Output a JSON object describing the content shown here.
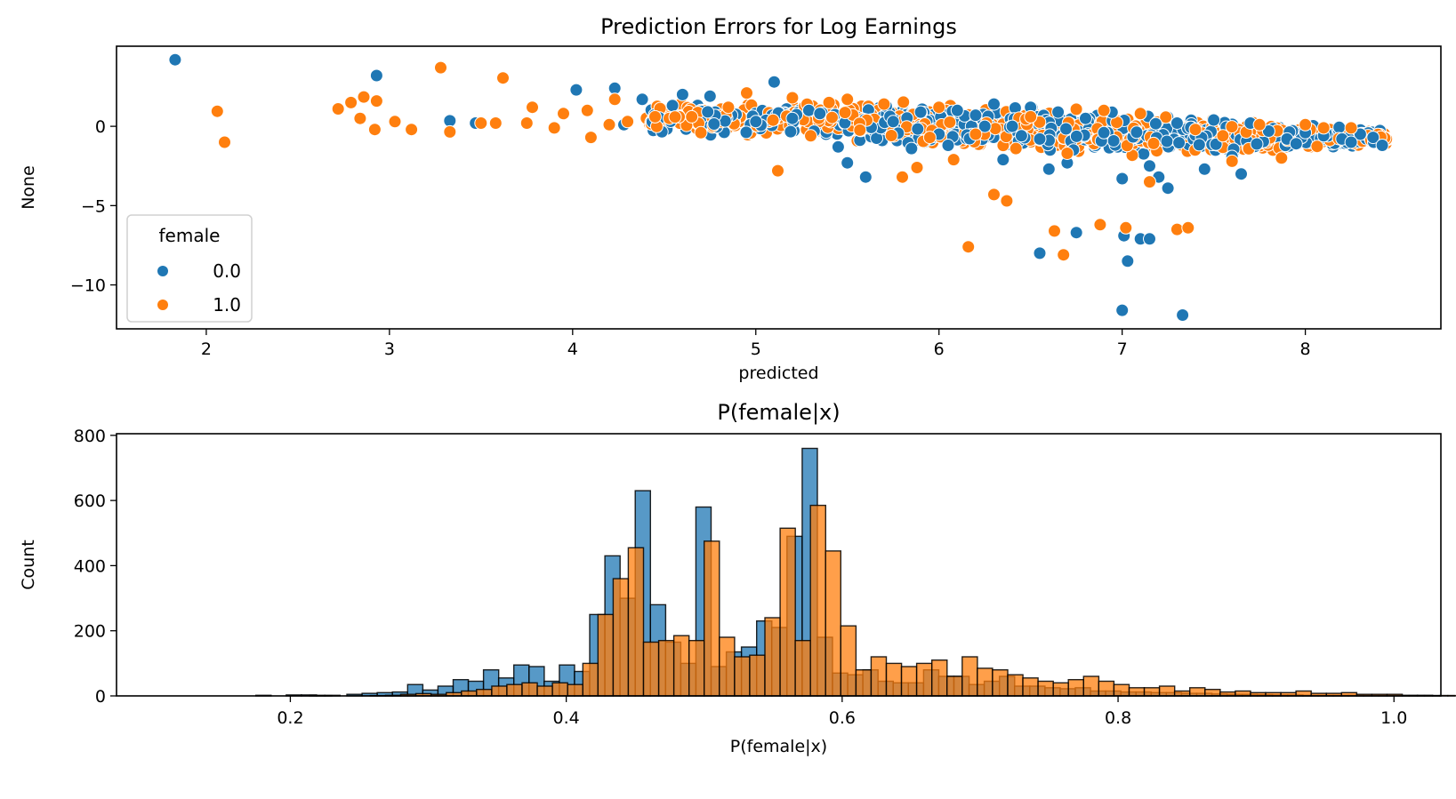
{
  "chart_data": [
    {
      "type": "scatter",
      "title": "Prediction Errors for Log Earnings",
      "xlabel": "predicted",
      "ylabel": "None",
      "xlim": [
        1.51,
        8.74
      ],
      "ylim": [
        -12.77,
        5.05
      ],
      "xticks": [
        2,
        3,
        4,
        5,
        6,
        7,
        8
      ],
      "xtick_labels": [
        "2",
        "3",
        "4",
        "5",
        "6",
        "7",
        "8"
      ],
      "yticks": [
        0,
        -5,
        -10
      ],
      "ytick_labels": [
        "0",
        "−5",
        "−10"
      ],
      "grid": false,
      "legend": {
        "title": "female",
        "placement": "lower-left",
        "entries": [
          {
            "label": "0.0",
            "color": "#1f77b4"
          },
          {
            "label": "1.0",
            "color": "#ff7f0e"
          }
        ]
      },
      "series": [
        {
          "name": "0.0",
          "color": "#1f77b4",
          "points": [
            [
              1.83,
              4.2
            ],
            [
              2.93,
              3.2
            ],
            [
              3.33,
              0.35
            ],
            [
              3.47,
              0.2
            ],
            [
              4.02,
              2.3
            ],
            [
              4.23,
              2.4
            ],
            [
              4.28,
              0.1
            ],
            [
              4.38,
              1.7
            ],
            [
              4.6,
              2.0
            ],
            [
              4.75,
              1.9
            ],
            [
              5.1,
              2.8
            ],
            [
              5.0,
              0.3
            ],
            [
              5.2,
              0.5
            ],
            [
              5.35,
              0.8
            ],
            [
              5.45,
              -1.3
            ],
            [
              5.5,
              -2.3
            ],
            [
              5.6,
              -3.2
            ],
            [
              5.75,
              0.3
            ],
            [
              5.9,
              0.9
            ],
            [
              6.0,
              -0.5
            ],
            [
              6.1,
              1.0
            ],
            [
              6.2,
              0.7
            ],
            [
              6.3,
              1.4
            ],
            [
              6.35,
              -2.1
            ],
            [
              6.4,
              0.0
            ],
            [
              6.5,
              1.2
            ],
            [
              6.55,
              -0.8
            ],
            [
              6.6,
              -2.7
            ],
            [
              6.65,
              0.9
            ],
            [
              6.7,
              -2.3
            ],
            [
              6.75,
              -6.7
            ],
            [
              6.55,
              -8.0
            ],
            [
              6.8,
              0.5
            ],
            [
              6.9,
              -0.4
            ],
            [
              7.0,
              -3.3
            ],
            [
              7.01,
              -6.9
            ],
            [
              7.03,
              -8.5
            ],
            [
              7.1,
              -7.1
            ],
            [
              7.15,
              -7.1
            ],
            [
              7.0,
              -11.6
            ],
            [
              7.33,
              -11.9
            ],
            [
              7.15,
              -2.5
            ],
            [
              7.2,
              -3.2
            ],
            [
              7.25,
              -3.9
            ],
            [
              7.3,
              0.2
            ],
            [
              7.45,
              -2.7
            ],
            [
              7.5,
              0.4
            ],
            [
              7.6,
              -1.9
            ],
            [
              7.65,
              -3.0
            ],
            [
              7.7,
              0.2
            ],
            [
              7.8,
              -0.3
            ],
            [
              7.9,
              -0.8
            ],
            [
              8.0,
              -0.4
            ],
            [
              8.1,
              -0.6
            ],
            [
              8.2,
              -0.8
            ],
            [
              8.3,
              -0.5
            ],
            [
              8.37,
              -0.7
            ],
            [
              8.42,
              -1.2
            ],
            [
              8.25,
              -1.0
            ],
            [
              7.95,
              -1.1
            ],
            [
              6.25,
              0.0
            ],
            [
              6.45,
              -0.6
            ],
            [
              6.05,
              -1.2
            ],
            [
              5.85,
              -1.4
            ]
          ]
        },
        {
          "name": "1.0",
          "color": "#ff7f0e",
          "points": [
            [
              2.06,
              0.95
            ],
            [
              2.1,
              -1.0
            ],
            [
              2.72,
              1.1
            ],
            [
              2.79,
              1.5
            ],
            [
              2.86,
              1.85
            ],
            [
              2.93,
              1.6
            ],
            [
              2.84,
              0.5
            ],
            [
              2.92,
              -0.2
            ],
            [
              3.03,
              0.3
            ],
            [
              3.12,
              -0.2
            ],
            [
              3.28,
              3.7
            ],
            [
              3.33,
              -0.35
            ],
            [
              3.58,
              0.2
            ],
            [
              3.62,
              3.05
            ],
            [
              3.75,
              0.2
            ],
            [
              3.78,
              1.2
            ],
            [
              3.95,
              0.8
            ],
            [
              4.08,
              1.0
            ],
            [
              4.2,
              0.1
            ],
            [
              4.23,
              1.7
            ],
            [
              4.45,
              0.6
            ],
            [
              4.65,
              0.6
            ],
            [
              4.85,
              1.2
            ],
            [
              4.95,
              2.1
            ],
            [
              5.12,
              -2.8
            ],
            [
              5.2,
              1.8
            ],
            [
              5.4,
              1.5
            ],
            [
              5.5,
              1.7
            ],
            [
              5.7,
              1.4
            ],
            [
              5.8,
              -3.2
            ],
            [
              5.88,
              -2.6
            ],
            [
              6.0,
              1.2
            ],
            [
              6.08,
              -2.1
            ],
            [
              6.16,
              -7.6
            ],
            [
              6.3,
              -4.3
            ],
            [
              6.37,
              -4.7
            ],
            [
              6.5,
              0.6
            ],
            [
              6.63,
              -6.6
            ],
            [
              6.68,
              -8.1
            ],
            [
              6.88,
              -6.2
            ],
            [
              7.02,
              -6.4
            ],
            [
              7.15,
              -3.5
            ],
            [
              7.3,
              -6.5
            ],
            [
              7.36,
              -6.4
            ],
            [
              7.1,
              0.8
            ],
            [
              6.9,
              1.0
            ],
            [
              7.4,
              -0.2
            ],
            [
              7.55,
              -0.6
            ],
            [
              7.6,
              -2.2
            ],
            [
              7.75,
              0.1
            ],
            [
              7.87,
              -2.0
            ],
            [
              8.0,
              0.1
            ],
            [
              8.1,
              -0.1
            ],
            [
              8.25,
              -0.1
            ],
            [
              6.2,
              -0.5
            ],
            [
              6.42,
              -1.4
            ],
            [
              6.7,
              -1.7
            ],
            [
              5.95,
              -0.7
            ],
            [
              5.3,
              -0.6
            ],
            [
              4.7,
              -0.4
            ],
            [
              4.3,
              0.3
            ],
            [
              3.9,
              -0.1
            ],
            [
              3.5,
              0.2
            ],
            [
              4.1,
              -0.7
            ]
          ]
        }
      ],
      "band": {
        "description": "dense overlapping cloud of residuals for both groups",
        "x_range": [
          4.4,
          8.45
        ],
        "upper_edge": [
          [
            4.4,
            1.6
          ],
          [
            5.3,
            1.75
          ],
          [
            6.3,
            1.55
          ],
          [
            7.0,
            1.15
          ],
          [
            7.6,
            0.6
          ],
          [
            8.45,
            -0.2
          ]
        ],
        "lower_edge": [
          [
            4.4,
            -0.6
          ],
          [
            5.3,
            -1.0
          ],
          [
            6.3,
            -1.9
          ],
          [
            7.0,
            -2.1
          ],
          [
            7.6,
            -1.8
          ],
          [
            8.45,
            -1.3
          ]
        ]
      }
    },
    {
      "type": "bar",
      "subtype": "histogram",
      "title": "P(female|x)",
      "xlabel": "P(female|x)",
      "ylabel": "Count",
      "xlim": [
        0.074,
        1.034
      ],
      "ylim": [
        0,
        805
      ],
      "xticks": [
        0.2,
        0.4,
        0.6,
        0.8,
        1.0
      ],
      "xtick_labels": [
        "0.2",
        "0.4",
        "0.6",
        "0.8",
        "1.0"
      ],
      "yticks": [
        0,
        200,
        400,
        600,
        800
      ],
      "ytick_labels": [
        "0",
        "200",
        "400",
        "600",
        "800"
      ],
      "grid": false,
      "series": [
        {
          "name": "0.0",
          "color": "#1f77b4",
          "bin_width": 0.011,
          "bin_start": 0.175,
          "values": [
            2,
            0,
            3,
            3,
            1,
            0,
            5,
            8,
            10,
            12,
            35,
            18,
            30,
            50,
            45,
            80,
            55,
            95,
            90,
            45,
            95,
            75,
            250,
            430,
            300,
            630,
            280,
            165,
            100,
            580,
            90,
            135,
            150,
            230,
            210,
            490,
            760,
            180,
            70,
            65,
            80,
            45,
            40,
            40,
            80,
            60,
            60,
            35,
            45,
            60,
            30,
            30,
            25,
            22,
            25,
            15,
            15,
            12,
            12,
            10,
            10,
            8,
            8,
            6,
            5,
            5,
            4,
            3,
            3,
            2,
            2,
            2,
            2,
            1,
            1,
            1,
            1,
            1,
            1
          ]
        },
        {
          "name": "1.0",
          "color": "#ff7f0e",
          "bin_width": 0.011,
          "bin_start": 0.181,
          "values": [
            0,
            0,
            0,
            2,
            2,
            0,
            0,
            1,
            2,
            5,
            7,
            5,
            10,
            15,
            20,
            30,
            35,
            40,
            30,
            40,
            35,
            100,
            250,
            360,
            455,
            165,
            170,
            185,
            170,
            475,
            180,
            120,
            125,
            240,
            515,
            170,
            585,
            445,
            215,
            80,
            120,
            100,
            90,
            100,
            110,
            60,
            120,
            85,
            80,
            65,
            55,
            45,
            40,
            50,
            60,
            45,
            35,
            25,
            25,
            30,
            15,
            25,
            20,
            12,
            15,
            10,
            10,
            10,
            15,
            8,
            8,
            10,
            5,
            5,
            5,
            2,
            2,
            1,
            1,
            1,
            1
          ]
        }
      ]
    }
  ]
}
